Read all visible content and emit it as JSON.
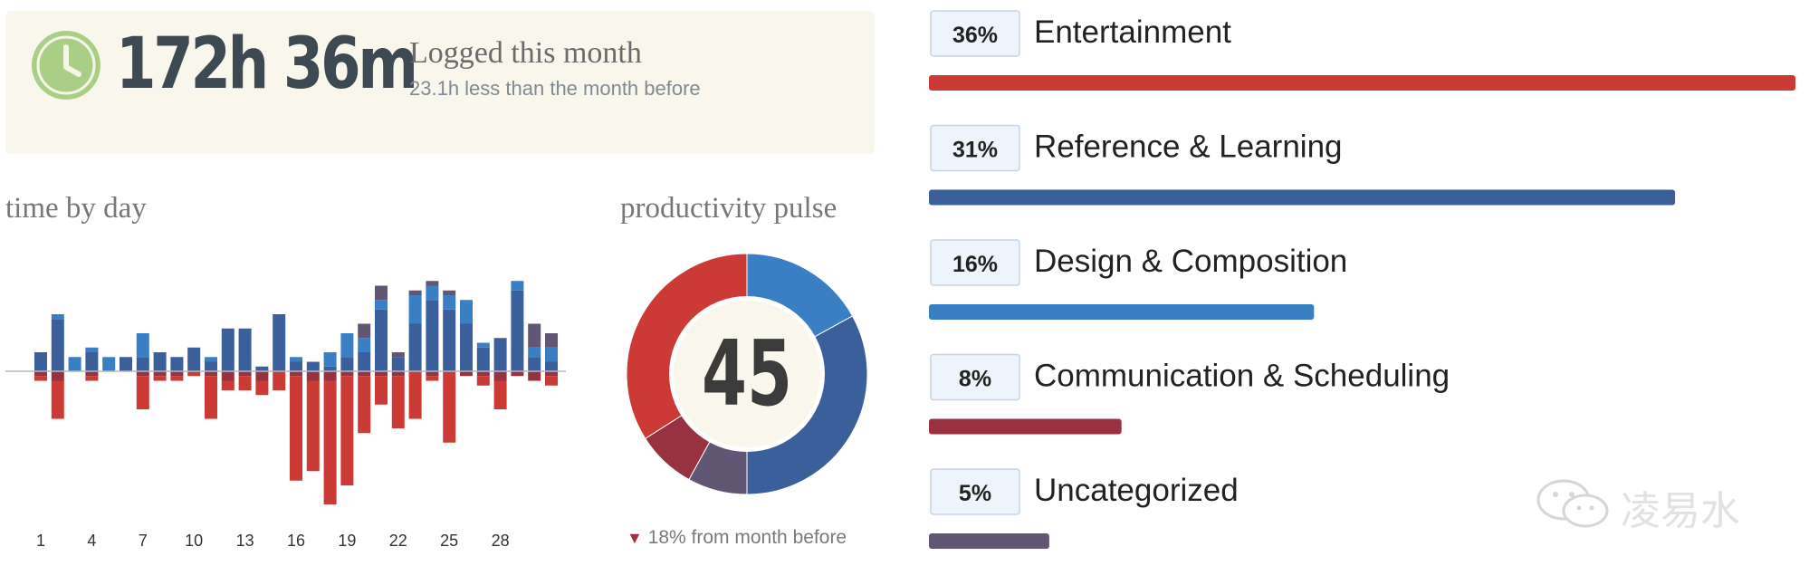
{
  "summary": {
    "total": "172h 36m",
    "title": "Logged this month",
    "subtitle": "23.1h less than the month before"
  },
  "icons": {
    "clock": "clock-icon",
    "arrow": "down-arrow-icon",
    "watermark": "wechat-icon"
  },
  "watermark": {
    "text": "凌易水"
  },
  "colors": {
    "summary_bg": "#f9f7ec",
    "clock": "#a9cf87",
    "very_productive": "#3a5f9b",
    "productive": "#3a7ec3",
    "neutral": "#615774",
    "distracting": "#983140",
    "very_distracting": "#cc3a35"
  },
  "chart_data": [
    {
      "type": "bar",
      "title": "time by day",
      "tick_labels": [
        "1",
        "4",
        "7",
        "10",
        "13",
        "16",
        "19",
        "22",
        "25",
        "28"
      ],
      "x": [
        1,
        2,
        3,
        4,
        5,
        6,
        7,
        8,
        9,
        10,
        11,
        12,
        13,
        14,
        15,
        16,
        17,
        18,
        19,
        20,
        21,
        22,
        23,
        24,
        25,
        26,
        27,
        28,
        29,
        30,
        31
      ],
      "series": [
        {
          "key": "very_productive",
          "values": [
            2.0,
            5.5,
            0,
            2.0,
            0,
            1.5,
            1.5,
            2.0,
            1.5,
            2.5,
            1.0,
            4.5,
            4.5,
            0.5,
            6.0,
            1.0,
            1.0,
            0.5,
            1.5,
            2.0,
            6.5,
            1.5,
            5.0,
            7.5,
            6.5,
            5.0,
            2.5,
            3.5,
            8.5,
            1.5,
            1.0
          ]
        },
        {
          "key": "productive",
          "values": [
            0,
            0.5,
            1.5,
            0.5,
            1.5,
            0,
            2.5,
            0,
            0,
            0,
            0.5,
            0,
            0,
            0,
            0,
            0.5,
            0,
            1.5,
            2.5,
            1.5,
            1.0,
            0,
            3.0,
            1.5,
            1.5,
            2.5,
            0.5,
            0,
            1.0,
            1.0,
            1.5
          ]
        },
        {
          "key": "neutral",
          "values": [
            0,
            0,
            0,
            0,
            0,
            0,
            0,
            0,
            0,
            0,
            0,
            0,
            0,
            0,
            0,
            0,
            0,
            0,
            0,
            1.5,
            1.5,
            0.5,
            0.5,
            0.5,
            0.5,
            0,
            0,
            0,
            0,
            2.5,
            1.5
          ]
        },
        {
          "key": "distracting",
          "values": [
            -0.5,
            -1.0,
            0,
            -0.5,
            0,
            0,
            -0.5,
            -0.5,
            -0.5,
            0,
            -0.5,
            -1.0,
            -0.5,
            -1.0,
            0,
            -0.5,
            -1.0,
            -1.0,
            -0.5,
            -0.5,
            -0.5,
            -0.5,
            0,
            -0.5,
            0,
            -0.5,
            -0.5,
            -1.0,
            -0.5,
            -1.0,
            -0.5
          ]
        },
        {
          "key": "very_distracting",
          "values": [
            -0.5,
            -4.0,
            0,
            -0.5,
            0,
            0,
            -3.5,
            -0.5,
            -0.5,
            -0.5,
            -4.5,
            -1.0,
            -1.5,
            -1.5,
            -2.0,
            -11.0,
            -9.5,
            -13.0,
            -11.5,
            -6.0,
            -3.0,
            -5.5,
            -5.0,
            -0.5,
            -7.5,
            0,
            -1.0,
            -3.0,
            0,
            0,
            -1.0
          ]
        }
      ],
      "ylim": [
        -14,
        16
      ]
    },
    {
      "type": "pie",
      "title": "productivity pulse",
      "center_value": "45",
      "note": "18% from month before",
      "slices": [
        {
          "key": "productive",
          "value": 17
        },
        {
          "key": "very_productive",
          "value": 33
        },
        {
          "key": "neutral",
          "value": 8
        },
        {
          "key": "distracting",
          "value": 8
        },
        {
          "key": "very_distracting",
          "value": 34
        }
      ]
    },
    {
      "type": "bar",
      "orientation": "horizontal",
      "categories": [
        "Entertainment",
        "Reference & Learning",
        "Design & Composition",
        "Communication & Scheduling",
        "Uncategorized"
      ],
      "values": [
        36,
        31,
        16,
        8,
        5
      ],
      "value_labels": [
        "36%",
        "31%",
        "16%",
        "8%",
        "5%"
      ],
      "bar_colors": [
        "#cc3a35",
        "#3a5f9b",
        "#3a7ec3",
        "#983140",
        "#615774"
      ],
      "xlim": [
        0,
        36
      ]
    }
  ]
}
